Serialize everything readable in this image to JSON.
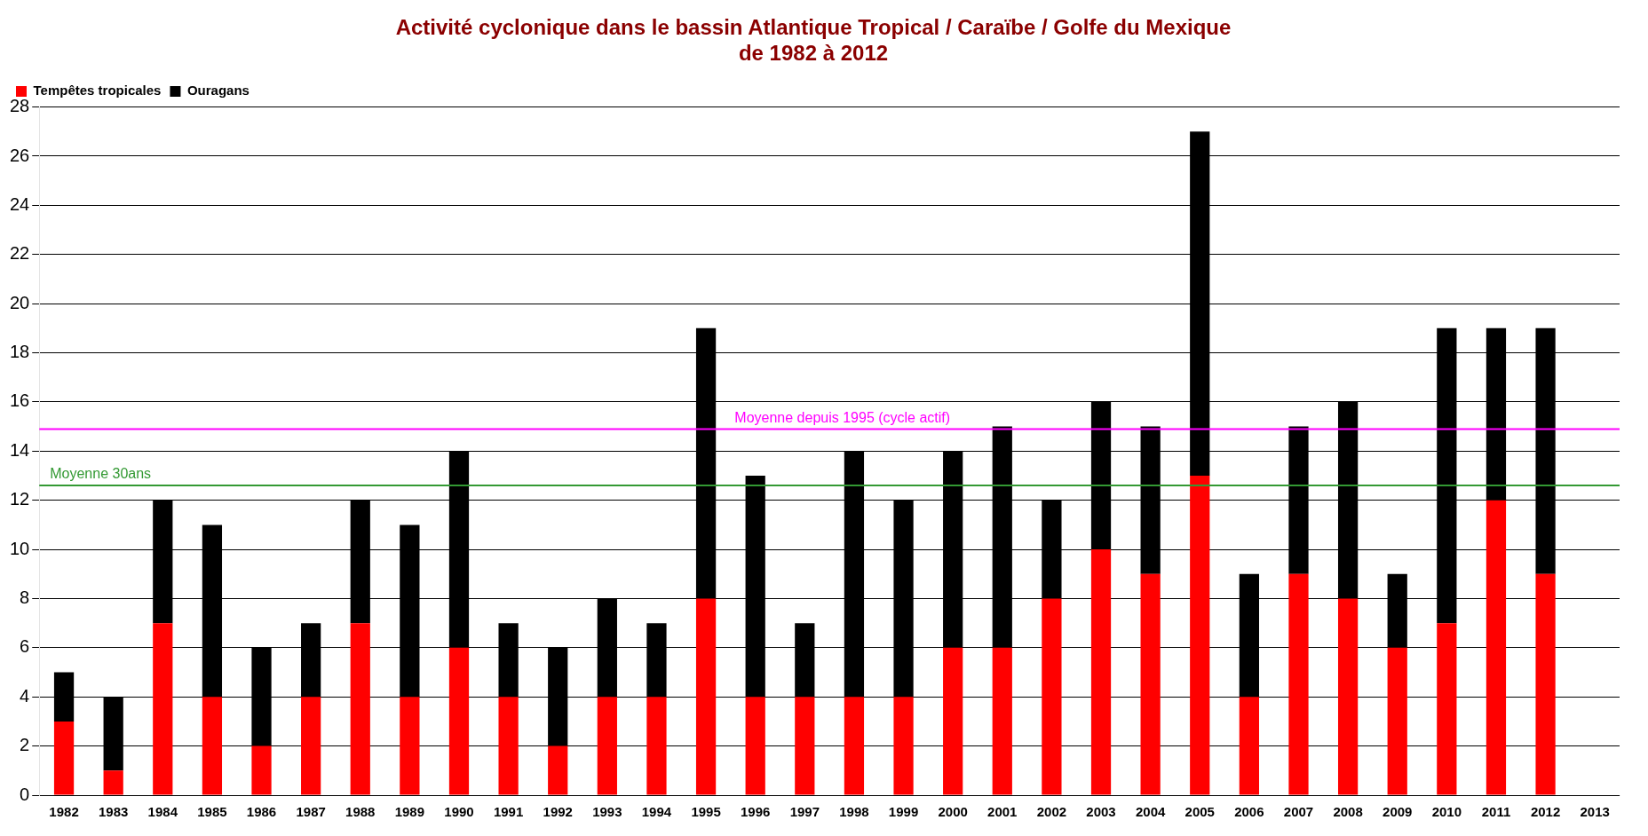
{
  "chart_data": {
    "type": "bar",
    "title": "Activité cyclonique dans le bassin Atlantique Tropical / Caraïbe / Golfe du Mexique\nde 1982 à 2012",
    "categories": [
      "1982",
      "1983",
      "1984",
      "1985",
      "1986",
      "1987",
      "1988",
      "1989",
      "1990",
      "1991",
      "1992",
      "1993",
      "1994",
      "1995",
      "1996",
      "1997",
      "1998",
      "1999",
      "2000",
      "2001",
      "2002",
      "2003",
      "2004",
      "2005",
      "2006",
      "2007",
      "2008",
      "2009",
      "2010",
      "2011",
      "2012",
      "2013"
    ],
    "stacked": true,
    "series": [
      {
        "name": "Tempêtes tropicales",
        "color": "#ff0000",
        "values": [
          3,
          1,
          7,
          4,
          2,
          4,
          7,
          4,
          6,
          4,
          2,
          4,
          4,
          8,
          4,
          4,
          4,
          4,
          6,
          6,
          8,
          10,
          9,
          13,
          4,
          9,
          8,
          6,
          7,
          12,
          9,
          null
        ]
      },
      {
        "name": "Ouragans",
        "color": "#000000",
        "values": [
          2,
          3,
          5,
          7,
          4,
          3,
          5,
          7,
          8,
          3,
          4,
          4,
          3,
          11,
          9,
          3,
          10,
          8,
          8,
          9,
          4,
          6,
          6,
          14,
          5,
          6,
          8,
          3,
          12,
          7,
          10,
          null
        ]
      }
    ],
    "ylim": [
      0,
      28
    ],
    "yticks": [
      0,
      2,
      4,
      6,
      8,
      10,
      12,
      14,
      16,
      18,
      20,
      22,
      24,
      26,
      28
    ],
    "grid": "y",
    "legend": "top left",
    "ref_lines": [
      {
        "axis": "y",
        "value": 12.6,
        "label": "Moyenne 30ans",
        "color": "#339933"
      },
      {
        "axis": "y",
        "value": 14.9,
        "label": "Moyenne depuis 1995 (cycle actif)",
        "color": "#ff00ff"
      }
    ]
  }
}
